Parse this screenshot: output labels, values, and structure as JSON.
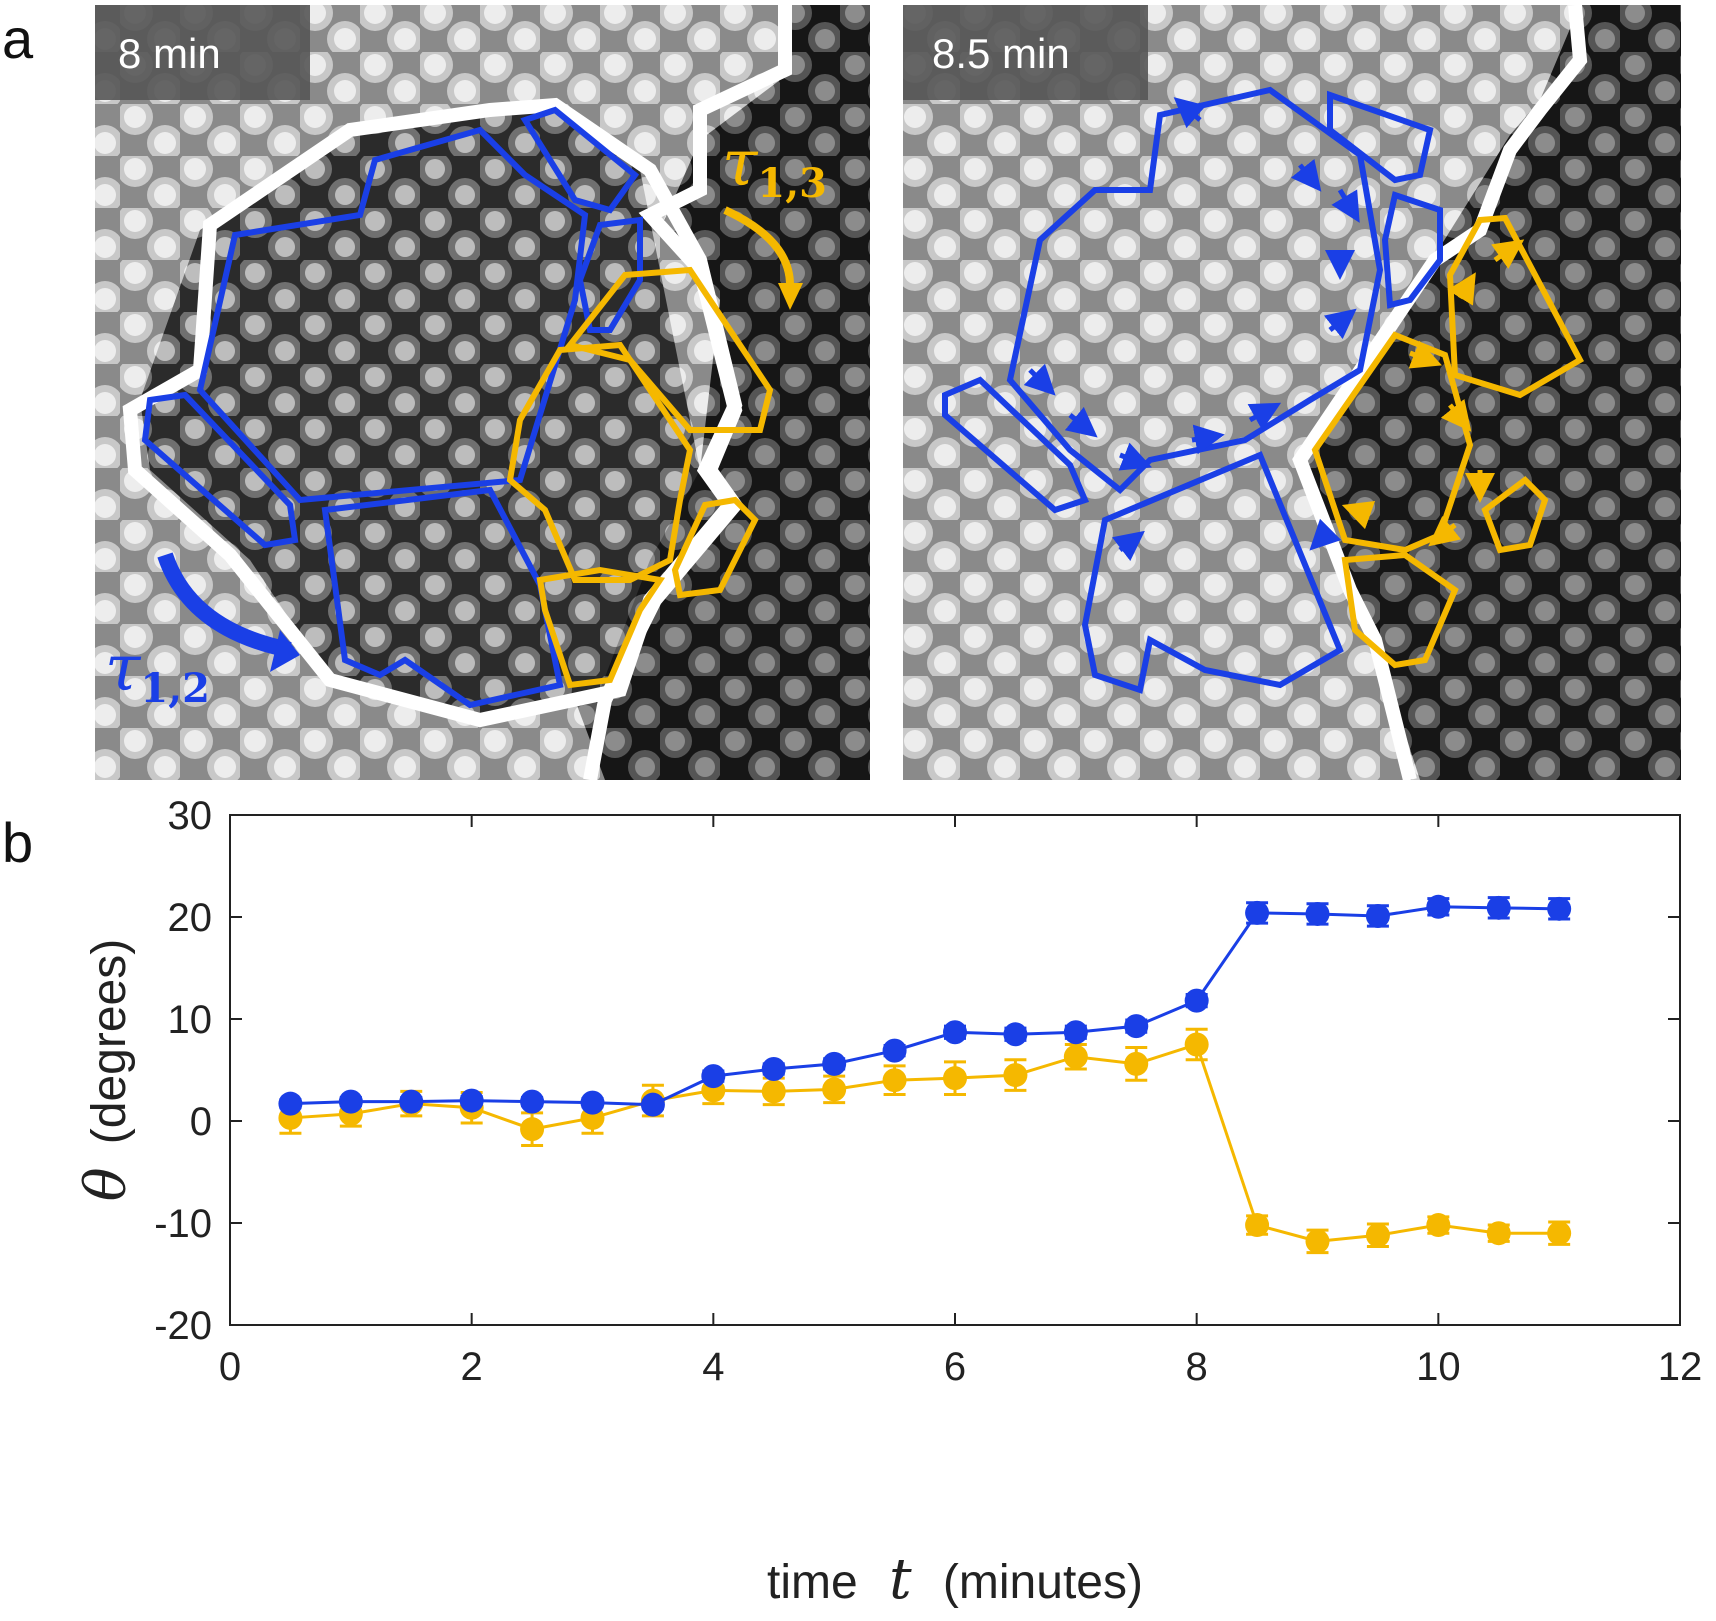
{
  "panel_a": {
    "letter": "a",
    "left_time": "8 min",
    "right_time": "8.5 min",
    "tau_blue": {
      "symbol": "τ",
      "subscript": "1,2"
    },
    "tau_orange": {
      "symbol": "τ",
      "subscript": "1,3"
    }
  },
  "panel_b": {
    "letter": "b"
  },
  "colors": {
    "blue": "#1a3fe6",
    "orange": "#f5b800",
    "white": "#ffffff"
  },
  "chart_data": {
    "type": "line",
    "title": "",
    "xlabel": "time",
    "xlabel_var": "t",
    "xlabel_units": "(minutes)",
    "ylabel_var": "θ",
    "ylabel": "(degrees)",
    "xlim": [
      0,
      12
    ],
    "ylim": [
      -20,
      30
    ],
    "xticks": [
      "0",
      "2",
      "4",
      "6",
      "8",
      "10",
      "12"
    ],
    "yticks": [
      "-20",
      "-10",
      "0",
      "10",
      "20",
      "30"
    ],
    "x": [
      0.5,
      1,
      1.5,
      2,
      2.5,
      3,
      3.5,
      4,
      4.5,
      5,
      5.5,
      6,
      6.5,
      7,
      7.5,
      8,
      8.5,
      9,
      9.5,
      10,
      10.5,
      11
    ],
    "series": [
      {
        "name": "blue",
        "color": "#1a3fe6",
        "values": [
          1.7,
          1.9,
          1.9,
          2.0,
          1.9,
          1.8,
          1.6,
          4.4,
          5.1,
          5.6,
          6.9,
          8.7,
          8.5,
          8.7,
          9.3,
          11.8,
          20.4,
          20.3,
          20.1,
          21.0,
          20.9,
          20.8
        ],
        "errors": [
          0.4,
          0.4,
          0.4,
          0.4,
          0.4,
          0.4,
          0.4,
          0.5,
          0.5,
          0.5,
          0.5,
          0.6,
          0.6,
          0.6,
          0.6,
          0.6,
          1.0,
          1.0,
          1.0,
          0.8,
          1.0,
          1.0
        ]
      },
      {
        "name": "orange",
        "color": "#f5b800",
        "values": [
          0.3,
          0.7,
          1.7,
          1.3,
          -0.8,
          0.3,
          2.0,
          3.0,
          2.9,
          3.1,
          4.0,
          4.2,
          4.5,
          6.3,
          5.6,
          7.5,
          -10.2,
          -11.8,
          -11.2,
          -10.2,
          -11.0,
          -11.0
        ],
        "errors": [
          1.5,
          1.2,
          1.2,
          1.5,
          1.6,
          1.5,
          1.5,
          1.3,
          1.3,
          1.3,
          1.4,
          1.6,
          1.5,
          1.2,
          1.6,
          1.5,
          0.9,
          1.1,
          1.1,
          0.8,
          0.8,
          1.1
        ]
      }
    ]
  }
}
